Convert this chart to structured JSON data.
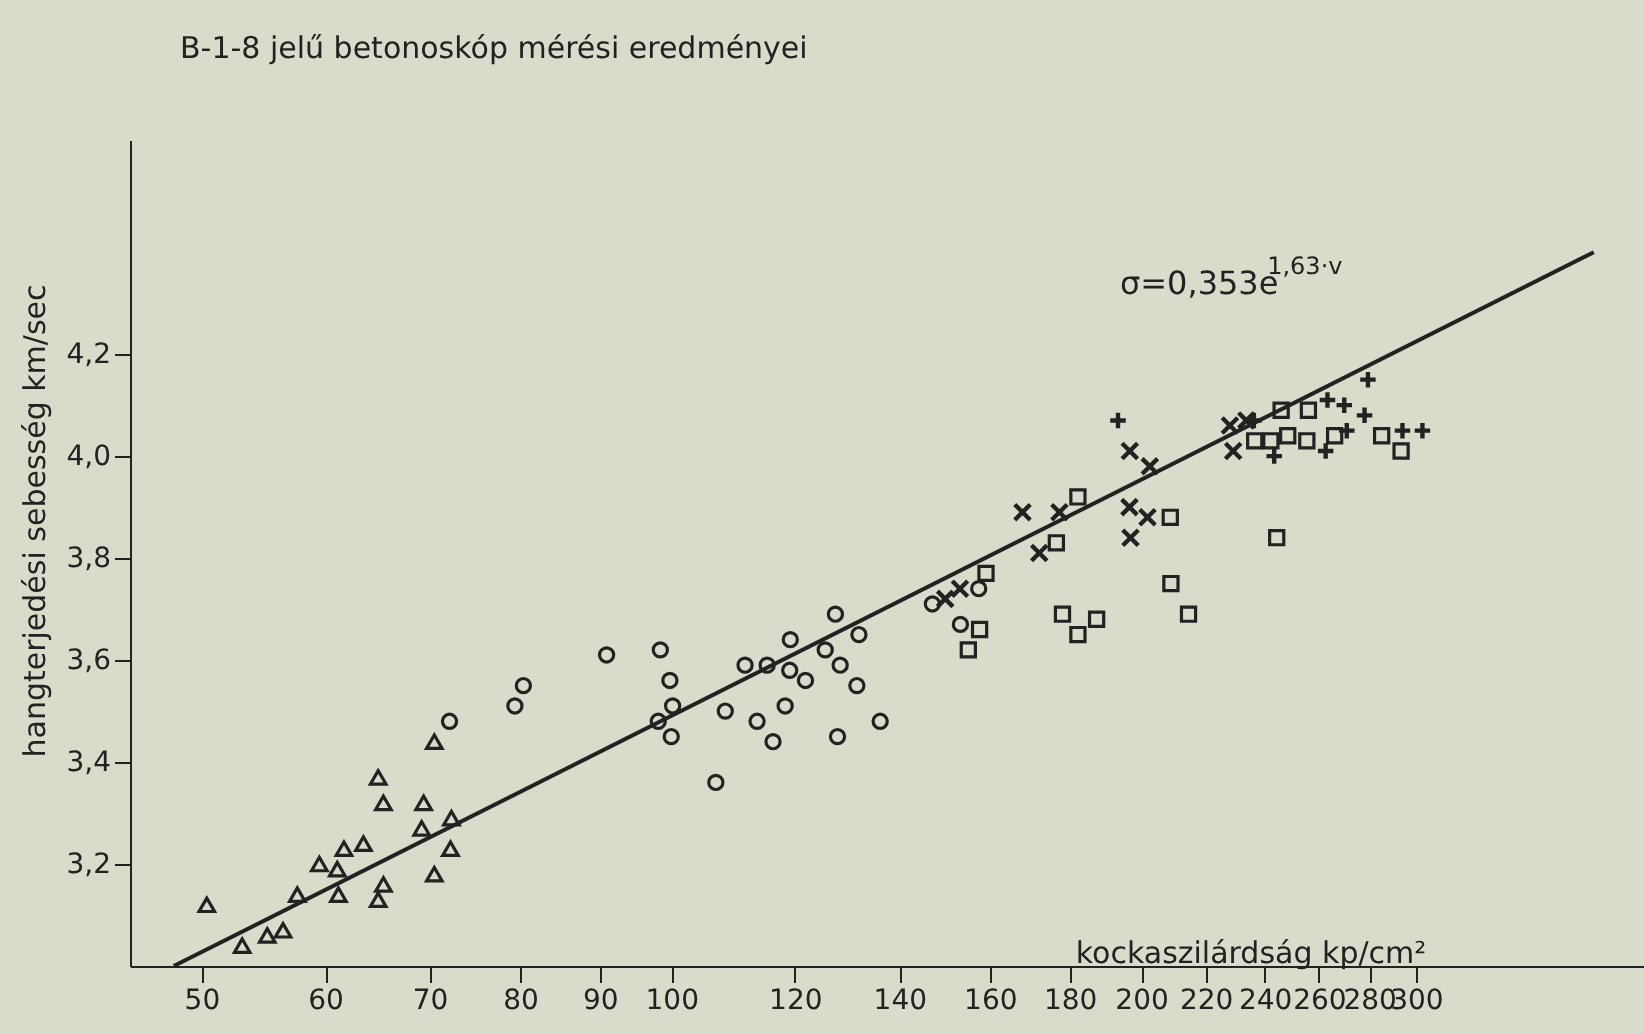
{
  "chart_data": {
    "type": "scatter",
    "title": "B-1-8 jelű betonoskóp mérési eredményei",
    "xlabel": "kockaszilárdság kp/cm²",
    "ylabel": "hangterjedési sebesség km/sec",
    "log": "x",
    "grid": false,
    "xlim": [
      45,
      420
    ],
    "xticks": [
      50,
      60,
      70,
      80,
      90,
      100,
      120,
      140,
      160,
      180,
      200,
      220,
      240,
      260,
      280,
      300
    ],
    "ylim": [
      3.0,
      4.62
    ],
    "yticks": [
      {
        "value": 3.2,
        "label": "3,2"
      },
      {
        "value": 3.4,
        "label": "3,4"
      },
      {
        "value": 3.6,
        "label": "3,6"
      },
      {
        "value": 3.8,
        "label": "3,8"
      },
      {
        "value": 4.0,
        "label": "4,0"
      },
      {
        "value": 4.2,
        "label": "4,2"
      }
    ],
    "annotations": [
      "σ=0,353e$^{1,63·v}$"
    ],
    "series": [
      {
        "marker": "triangle",
        "color": "#222222",
        "x": [
          50.4,
          53.1,
          55.1,
          56.4,
          57.6,
          59.5,
          61.1,
          61.7,
          61.2,
          63.5,
          64.9,
          65.4,
          65.4,
          64.9,
          69.4,
          69.2,
          70.5,
          70.5,
          72.3,
          72.2
        ],
        "values": [
          3.12,
          3.04,
          3.06,
          3.07,
          3.14,
          3.2,
          3.19,
          3.23,
          3.14,
          3.24,
          3.37,
          3.32,
          3.16,
          3.13,
          3.32,
          3.27,
          3.44,
          3.18,
          3.29,
          3.23
        ]
      },
      {
        "marker": "circle",
        "color": "#222222",
        "x": [
          72.1,
          79.4,
          80.4,
          90.9,
          98.4,
          99.8,
          100.2,
          98.1,
          100.0,
          108.3,
          106.8,
          115.2
        ],
        "values": [
          3.48,
          3.51,
          3.55,
          3.61,
          3.62,
          3.56,
          3.51,
          3.48,
          3.45,
          3.5,
          3.36,
          3.59
        ]
      },
      {
        "marker": "circle",
        "color": "#222222",
        "x": [
          111.5,
          113.5,
          116.2,
          118.3,
          119.2,
          119.1,
          121.9,
          125.5,
          127.4,
          128.3,
          131.5,
          131.9,
          127.8,
          136.1,
          147.0,
          153.2,
          157.4
        ],
        "values": [
          3.59,
          3.48,
          3.44,
          3.51,
          3.64,
          3.58,
          3.56,
          3.62,
          3.69,
          3.59,
          3.55,
          3.65,
          3.45,
          3.48,
          3.71,
          3.67,
          3.74
        ]
      },
      {
        "marker": "x",
        "color": "#222222",
        "x": [
          149.8,
          153.1,
          167.9,
          172.1,
          177.3,
          196.6,
          201.9,
          196.9,
          196.7,
          202.6,
          228.0,
          233.6,
          229.1
        ],
        "values": [
          3.72,
          3.74,
          3.89,
          3.81,
          3.89,
          3.9,
          3.88,
          3.84,
          4.01,
          3.98,
          4.06,
          4.07,
          4.01
        ]
      },
      {
        "marker": "cross",
        "color": "#222222",
        "x": [
          193.3,
          236.2,
          243.4,
          263.3,
          269.9,
          278.1,
          279.5,
          270.9,
          262.6,
          294.1,
          302.9
        ],
        "values": [
          4.07,
          4.07,
          4.0,
          4.11,
          4.1,
          4.08,
          4.15,
          4.05,
          4.01,
          4.05,
          4.05
        ]
      },
      {
        "marker": "square",
        "color": "#222222",
        "x": [
          182.2,
          176.5,
          159.1,
          157.6,
          155.0,
          178.1,
          182.2,
          187.3,
          208.8,
          214.5,
          244.3,
          242.2,
          255.4
        ],
        "values": [
          3.92,
          3.83,
          3.77,
          3.66,
          3.62,
          3.69,
          3.65,
          3.68,
          3.88,
          3.69,
          3.84,
          4.03,
          4.03
        ]
      },
      {
        "marker": "square",
        "color": "#222222",
        "x": [
          209.0,
          245.9,
          236.5,
          248.3,
          256.0,
          266.1,
          285.2,
          293.5
        ],
        "values": [
          3.75,
          4.09,
          4.03,
          4.04,
          4.09,
          4.04,
          4.04,
          4.01
        ]
      },
      {
        "type": "line",
        "line_style": "solid",
        "color": "#222222",
        "x": [
          48,
          390
        ],
        "values": [
          3.0,
          4.4
        ]
      }
    ]
  }
}
